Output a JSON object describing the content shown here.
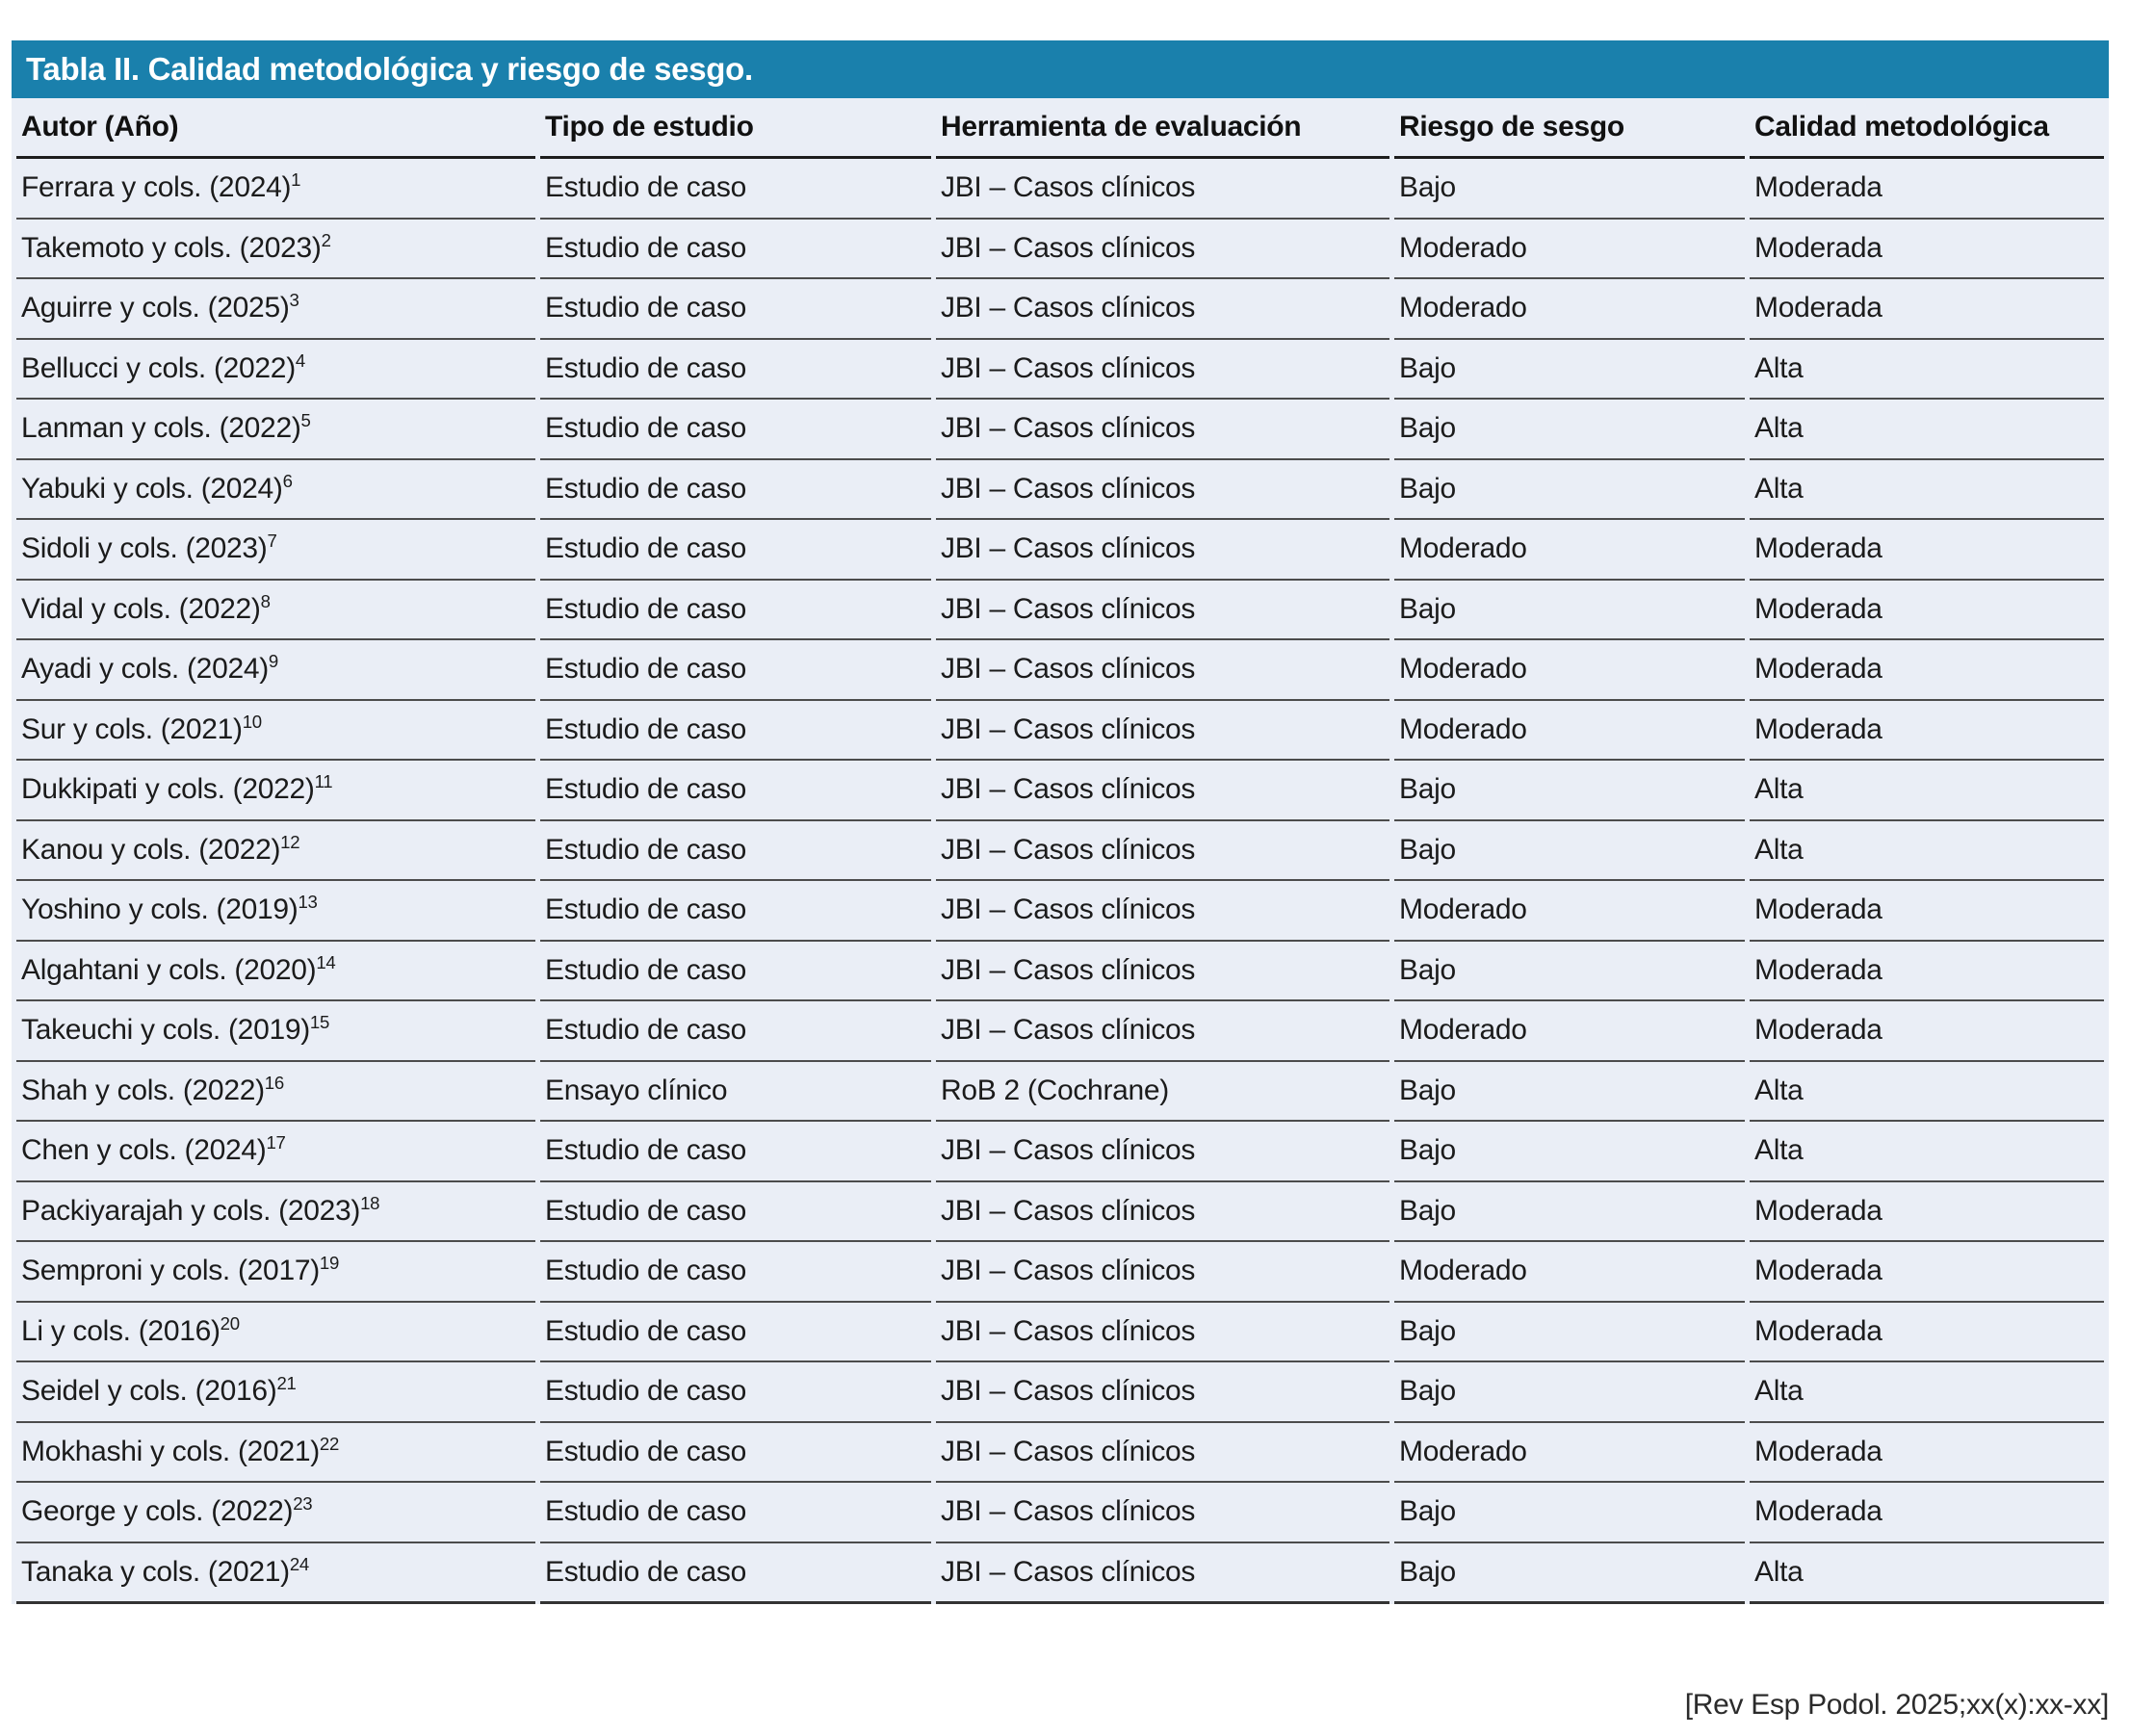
{
  "title": "Tabla II. Calidad metodológica y riesgo de sesgo.",
  "columns": {
    "author": "Autor (Año)",
    "study_type": "Tipo de estudio",
    "tool": "Herramienta de evaluación",
    "risk": "Riesgo de sesgo",
    "quality": "Calidad metodológica"
  },
  "rows": [
    {
      "author": "Ferrara y cols. (2024)",
      "ref": "1",
      "study_type": "Estudio de caso",
      "tool": "JBI – Casos clínicos",
      "risk": "Bajo",
      "quality": "Moderada"
    },
    {
      "author": "Takemoto y cols. (2023)",
      "ref": "2",
      "study_type": "Estudio de caso",
      "tool": "JBI – Casos clínicos",
      "risk": "Moderado",
      "quality": "Moderada"
    },
    {
      "author": "Aguirre y cols. (2025)",
      "ref": "3",
      "study_type": "Estudio de caso",
      "tool": "JBI – Casos clínicos",
      "risk": "Moderado",
      "quality": "Moderada"
    },
    {
      "author": "Bellucci y cols. (2022)",
      "ref": "4",
      "study_type": "Estudio de caso",
      "tool": "JBI – Casos clínicos",
      "risk": "Bajo",
      "quality": "Alta"
    },
    {
      "author": "Lanman y cols. (2022)",
      "ref": "5",
      "study_type": "Estudio de caso",
      "tool": "JBI – Casos clínicos",
      "risk": "Bajo",
      "quality": "Alta"
    },
    {
      "author": "Yabuki y cols. (2024)",
      "ref": "6",
      "study_type": "Estudio de caso",
      "tool": "JBI – Casos clínicos",
      "risk": "Bajo",
      "quality": "Alta"
    },
    {
      "author": "Sidoli y cols. (2023)",
      "ref": "7",
      "study_type": "Estudio de caso",
      "tool": "JBI – Casos clínicos",
      "risk": "Moderado",
      "quality": "Moderada"
    },
    {
      "author": "Vidal y cols. (2022)",
      "ref": "8",
      "study_type": "Estudio de caso",
      "tool": "JBI – Casos clínicos",
      "risk": "Bajo",
      "quality": "Moderada"
    },
    {
      "author": "Ayadi y cols. (2024)",
      "ref": "9",
      "study_type": "Estudio de caso",
      "tool": "JBI – Casos clínicos",
      "risk": "Moderado",
      "quality": "Moderada"
    },
    {
      "author": "Sur y cols. (2021)",
      "ref": "10",
      "study_type": "Estudio de caso",
      "tool": "JBI – Casos clínicos",
      "risk": "Moderado",
      "quality": "Moderada"
    },
    {
      "author": "Dukkipati y cols. (2022)",
      "ref": "11",
      "study_type": "Estudio de caso",
      "tool": "JBI – Casos clínicos",
      "risk": "Bajo",
      "quality": "Alta"
    },
    {
      "author": "Kanou y cols. (2022)",
      "ref": "12",
      "study_type": "Estudio de caso",
      "tool": "JBI – Casos clínicos",
      "risk": "Bajo",
      "quality": "Alta"
    },
    {
      "author": "Yoshino y cols. (2019)",
      "ref": "13",
      "study_type": "Estudio de caso",
      "tool": "JBI – Casos clínicos",
      "risk": "Moderado",
      "quality": "Moderada"
    },
    {
      "author": "Algahtani y cols. (2020)",
      "ref": "14",
      "study_type": "Estudio de caso",
      "tool": "JBI – Casos clínicos",
      "risk": "Bajo",
      "quality": "Moderada"
    },
    {
      "author": "Takeuchi y cols. (2019)",
      "ref": "15",
      "study_type": "Estudio de caso",
      "tool": "JBI – Casos clínicos",
      "risk": "Moderado",
      "quality": "Moderada"
    },
    {
      "author": "Shah y cols. (2022)",
      "ref": "16",
      "study_type": "Ensayo clínico",
      "tool": "RoB 2 (Cochrane)",
      "risk": "Bajo",
      "quality": "Alta"
    },
    {
      "author": "Chen y cols. (2024)",
      "ref": "17",
      "study_type": "Estudio de caso",
      "tool": "JBI – Casos clínicos",
      "risk": "Bajo",
      "quality": "Alta"
    },
    {
      "author": "Packiyarajah y cols. (2023)",
      "ref": "18",
      "study_type": "Estudio de caso",
      "tool": "JBI – Casos clínicos",
      "risk": "Bajo",
      "quality": "Moderada"
    },
    {
      "author": "Semproni y cols. (2017)",
      "ref": "19",
      "study_type": "Estudio de caso",
      "tool": "JBI – Casos clínicos",
      "risk": "Moderado",
      "quality": "Moderada"
    },
    {
      "author": "Li y cols. (2016)",
      "ref": "20",
      "study_type": "Estudio de caso",
      "tool": "JBI – Casos clínicos",
      "risk": "Bajo",
      "quality": "Moderada"
    },
    {
      "author": "Seidel y cols. (2016)",
      "ref": "21",
      "study_type": "Estudio de caso",
      "tool": "JBI – Casos clínicos",
      "risk": "Bajo",
      "quality": "Alta"
    },
    {
      "author": "Mokhashi y cols. (2021)",
      "ref": "22",
      "study_type": "Estudio de caso",
      "tool": "JBI – Casos clínicos",
      "risk": "Moderado",
      "quality": "Moderada"
    },
    {
      "author": "George y cols. (2022)",
      "ref": "23",
      "study_type": "Estudio de caso",
      "tool": "JBI – Casos clínicos",
      "risk": "Bajo",
      "quality": "Moderada"
    },
    {
      "author": "Tanaka y cols. (2021)",
      "ref": "24",
      "study_type": "Estudio de caso",
      "tool": "JBI – Casos clínicos",
      "risk": "Bajo",
      "quality": "Alta"
    }
  ],
  "footer": "[Rev Esp Podol. 2025;xx(x):xx-xx]",
  "colors": {
    "header_bar": "#1A80AC",
    "table_background": "#EAEEF6",
    "row_separator": "#4C4C4C",
    "header_separator": "#1D1D1D",
    "title_text": "#FFFFFF",
    "body_text": "#1B1B1B"
  }
}
